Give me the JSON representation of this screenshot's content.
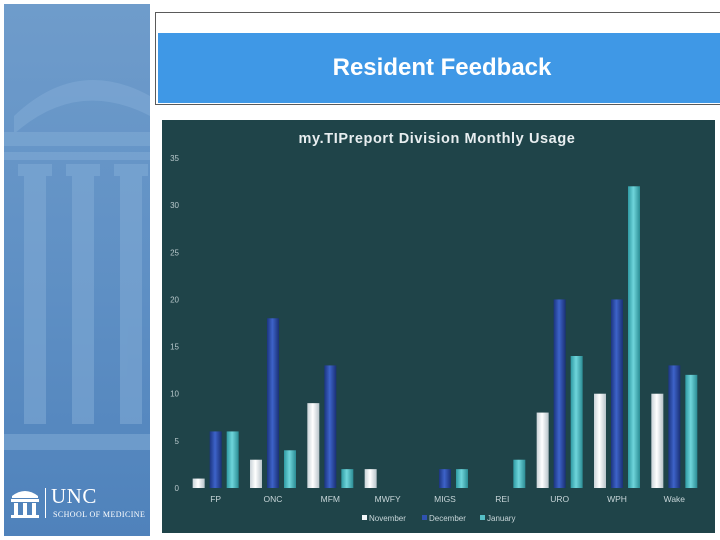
{
  "slide": {
    "title": "Resident Feedback"
  },
  "logo": {
    "name": "UNC",
    "subtitle": "SCHOOL OF MEDICINE"
  },
  "colors": {
    "sidebar": "#5e8fc4",
    "title_bar": "#3f98e6",
    "chart_background": "#1f4449",
    "november": "#f2f6f8",
    "december": "#2f52b0",
    "january": "#55bfc6"
  },
  "chart_data": {
    "type": "bar",
    "title": "my.TIPreport Division Monthly Usage",
    "categories": [
      "FP",
      "ONC",
      "MFM",
      "MWFY",
      "MIGS",
      "REI",
      "URO",
      "WPH",
      "Wake"
    ],
    "series": [
      {
        "name": "November",
        "values": [
          1,
          3,
          9,
          2,
          0,
          0,
          8,
          10,
          10
        ]
      },
      {
        "name": "December",
        "values": [
          6,
          18,
          13,
          0,
          2,
          0,
          20,
          20,
          13
        ]
      },
      {
        "name": "January",
        "values": [
          6,
          4,
          2,
          0,
          2,
          3,
          14,
          32,
          12
        ]
      }
    ],
    "ylim": [
      0,
      35
    ],
    "yticks": [
      0,
      5,
      10,
      15,
      20,
      25,
      30,
      35
    ],
    "grid": false,
    "legend": "bottom"
  }
}
